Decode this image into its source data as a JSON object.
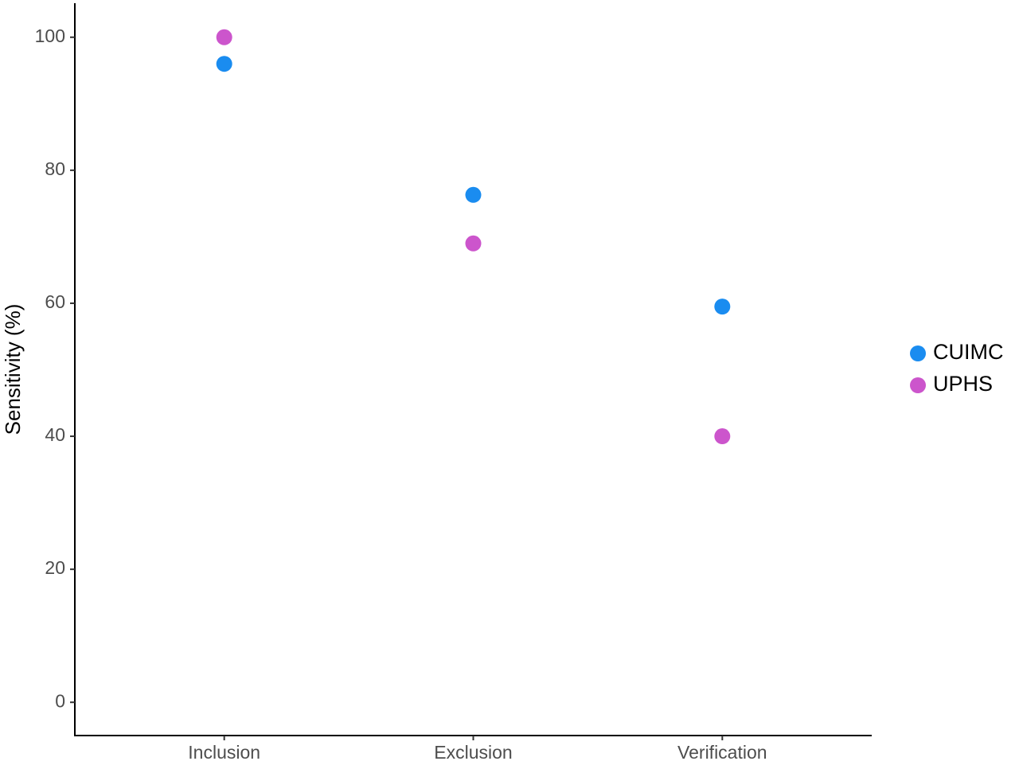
{
  "chart_data": {
    "type": "dot",
    "y_label": "Sensitivity (%)",
    "categories": [
      "Inclusion",
      "Exclusion",
      "Verification"
    ],
    "series": [
      {
        "name": "CUIMC",
        "color": "#1a8cf0",
        "values": [
          96,
          76.3,
          59.5
        ]
      },
      {
        "name": "UPHS",
        "color": "#cc55cc",
        "values": [
          100,
          69,
          40
        ]
      }
    ],
    "ylim": [
      -5,
      105
    ],
    "yticks": [
      0,
      20,
      40,
      60,
      80,
      100
    ],
    "grid": false,
    "legend": "right"
  }
}
